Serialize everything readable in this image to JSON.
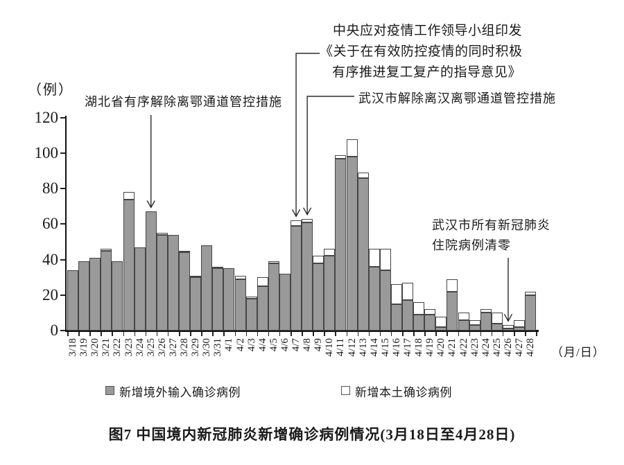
{
  "figure": {
    "caption": "图7  中国境内新冠肺炎新增确诊病例情况(3月18日至4月28日)"
  },
  "y_axis": {
    "unit_label": "（例）",
    "ticks": [
      0,
      20,
      40,
      60,
      80,
      100,
      120
    ]
  },
  "x_axis": {
    "unit_label": "（月/日）"
  },
  "legend": [
    {
      "label": "新增境外输入确诊病例",
      "swatch_color": "#9a9a9a"
    },
    {
      "label": "新增本土确诊病例",
      "swatch_color": "#ffffff"
    }
  ],
  "annotations": [
    {
      "id": "hubei",
      "target_date": "3/25",
      "lines": [
        "湖北省有序解除离鄂通道管控措施"
      ]
    },
    {
      "id": "central",
      "target_date": "4/7",
      "lines": [
        "中央应对疫情工作领导小组印发",
        "《关于在有效防控疫情的同时积极",
        "有序推进复工复产的指导意见》"
      ]
    },
    {
      "id": "wuhan_channel",
      "target_date": "4/8",
      "lines": [
        "武汉市解除离汉离鄂通道管控措施"
      ]
    },
    {
      "id": "wuhan_clear",
      "target_date": "4/26",
      "lines": [
        "武汉市所有新冠肺炎",
        "住院病例清零"
      ]
    }
  ],
  "chart_data": {
    "type": "bar",
    "stacked": true,
    "title": "图7 中国境内新冠肺炎新增确诊病例情况(3月18日至4月28日)",
    "xlabel": "（月/日）",
    "ylabel": "（例）",
    "ylim": [
      0,
      120
    ],
    "grid": false,
    "legend_position": "bottom",
    "categories": [
      "3/18",
      "3/19",
      "3/20",
      "3/21",
      "3/22",
      "3/23",
      "3/24",
      "3/25",
      "3/26",
      "3/27",
      "3/28",
      "3/29",
      "3/30",
      "3/31",
      "4/1",
      "4/2",
      "4/3",
      "4/4",
      "4/5",
      "4/6",
      "4/7",
      "4/8",
      "4/9",
      "4/10",
      "4/11",
      "4/12",
      "4/13",
      "4/14",
      "4/15",
      "4/16",
      "4/17",
      "4/18",
      "4/19",
      "4/20",
      "4/21",
      "4/22",
      "4/23",
      "4/24",
      "4/25",
      "4/26",
      "4/27",
      "4/28"
    ],
    "series": [
      {
        "name": "新增境外输入确诊病例",
        "color": "#9a9a9a",
        "values": [
          34,
          39,
          41,
          45,
          39,
          74,
          47,
          67,
          54,
          54,
          44,
          30,
          48,
          35,
          35,
          29,
          18,
          25,
          38,
          32,
          59,
          61,
          38,
          42,
          97,
          98,
          86,
          36,
          34,
          15,
          17,
          9,
          9,
          2,
          22,
          6,
          3,
          10,
          4,
          1,
          2,
          20
        ]
      },
      {
        "name": "新增本土确诊病例",
        "color": "#ffffff",
        "values": [
          0,
          0,
          0,
          1,
          0,
          4,
          0,
          0,
          1,
          0,
          1,
          1,
          0,
          1,
          0,
          2,
          1,
          5,
          1,
          0,
          3,
          2,
          4,
          4,
          2,
          10,
          3,
          10,
          12,
          11,
          10,
          7,
          3,
          6,
          7,
          4,
          3,
          2,
          6,
          2,
          4,
          2
        ]
      }
    ]
  }
}
